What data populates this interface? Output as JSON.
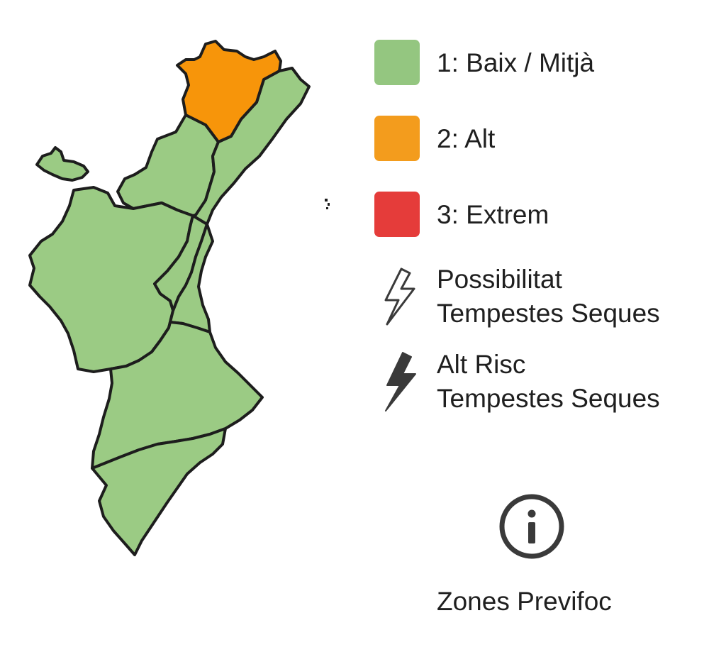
{
  "colors": {
    "level_low": "#94c680",
    "level_high": "#f39c1d",
    "level_extreme": "#e53c3a",
    "map_low_fill": "#9bcb84",
    "map_high_fill": "#f7950a",
    "border": "#1d1d1d",
    "text": "#1f1f1f",
    "icon": "#3a3a3a"
  },
  "legend": {
    "levels": [
      {
        "label": "1: Baix / Mitjà",
        "color": "#94c680"
      },
      {
        "label": "2: Alt",
        "color": "#f39c1d"
      },
      {
        "label": "3: Extrem",
        "color": "#e53c3a"
      }
    ],
    "dry_storm_possible": {
      "line1": "Possibilitat",
      "line2": "Tempestes Seques",
      "icon": "lightning-outline-icon"
    },
    "dry_storm_high": {
      "line1": "Alt Risc",
      "line2": "Tempestes Seques",
      "icon": "lightning-filled-icon"
    }
  },
  "info": {
    "icon": "info-circle-icon",
    "link_label": "Zones Previfoc"
  },
  "map": {
    "zones": [
      {
        "id": "zone-1",
        "level": 2
      },
      {
        "id": "zone-2",
        "level": 1
      },
      {
        "id": "zone-3",
        "level": 1
      },
      {
        "id": "zone-4",
        "level": 1
      },
      {
        "id": "zone-5",
        "level": 1
      },
      {
        "id": "zone-6",
        "level": 1
      },
      {
        "id": "zone-7",
        "level": 1
      },
      {
        "id": "zone-8",
        "level": 1
      },
      {
        "id": "zone-9",
        "level": 1
      }
    ]
  }
}
